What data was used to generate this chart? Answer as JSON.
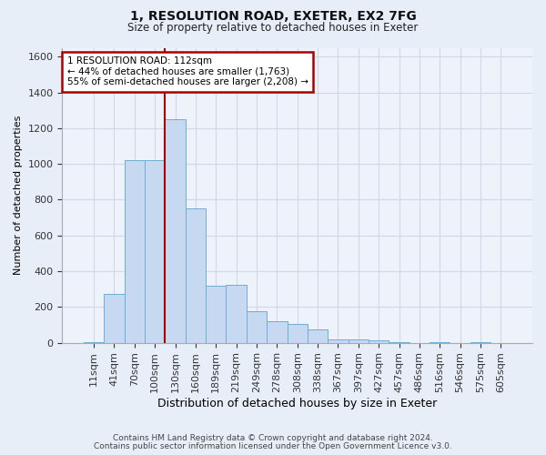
{
  "title1": "1, RESOLUTION ROAD, EXETER, EX2 7FG",
  "title2": "Size of property relative to detached houses in Exeter",
  "xlabel": "Distribution of detached houses by size in Exeter",
  "ylabel": "Number of detached properties",
  "categories": [
    "11sqm",
    "41sqm",
    "70sqm",
    "100sqm",
    "130sqm",
    "160sqm",
    "189sqm",
    "219sqm",
    "249sqm",
    "278sqm",
    "308sqm",
    "338sqm",
    "367sqm",
    "397sqm",
    "427sqm",
    "457sqm",
    "486sqm",
    "516sqm",
    "546sqm",
    "575sqm",
    "605sqm"
  ],
  "values": [
    5,
    275,
    1020,
    1020,
    1250,
    750,
    320,
    325,
    175,
    120,
    105,
    75,
    20,
    20,
    15,
    5,
    0,
    5,
    0,
    5,
    0
  ],
  "bar_color": "#c6d9f1",
  "bar_edge_color": "#6baed6",
  "vline_color": "#aa0000",
  "vline_x": 3.5,
  "annotation_text": "1 RESOLUTION ROAD: 112sqm\n← 44% of detached houses are smaller (1,763)\n55% of semi-detached houses are larger (2,208) →",
  "annotation_box_edgecolor": "#aa0000",
  "annotation_fill": "#ffffff",
  "ylim": [
    0,
    1650
  ],
  "yticks": [
    0,
    200,
    400,
    600,
    800,
    1000,
    1200,
    1400,
    1600
  ],
  "footer1": "Contains HM Land Registry data © Crown copyright and database right 2024.",
  "footer2": "Contains public sector information licensed under the Open Government Licence v3.0.",
  "bg_color": "#e8eef8",
  "plot_bg_color": "#eef2fa",
  "grid_color": "#d0d8e8"
}
